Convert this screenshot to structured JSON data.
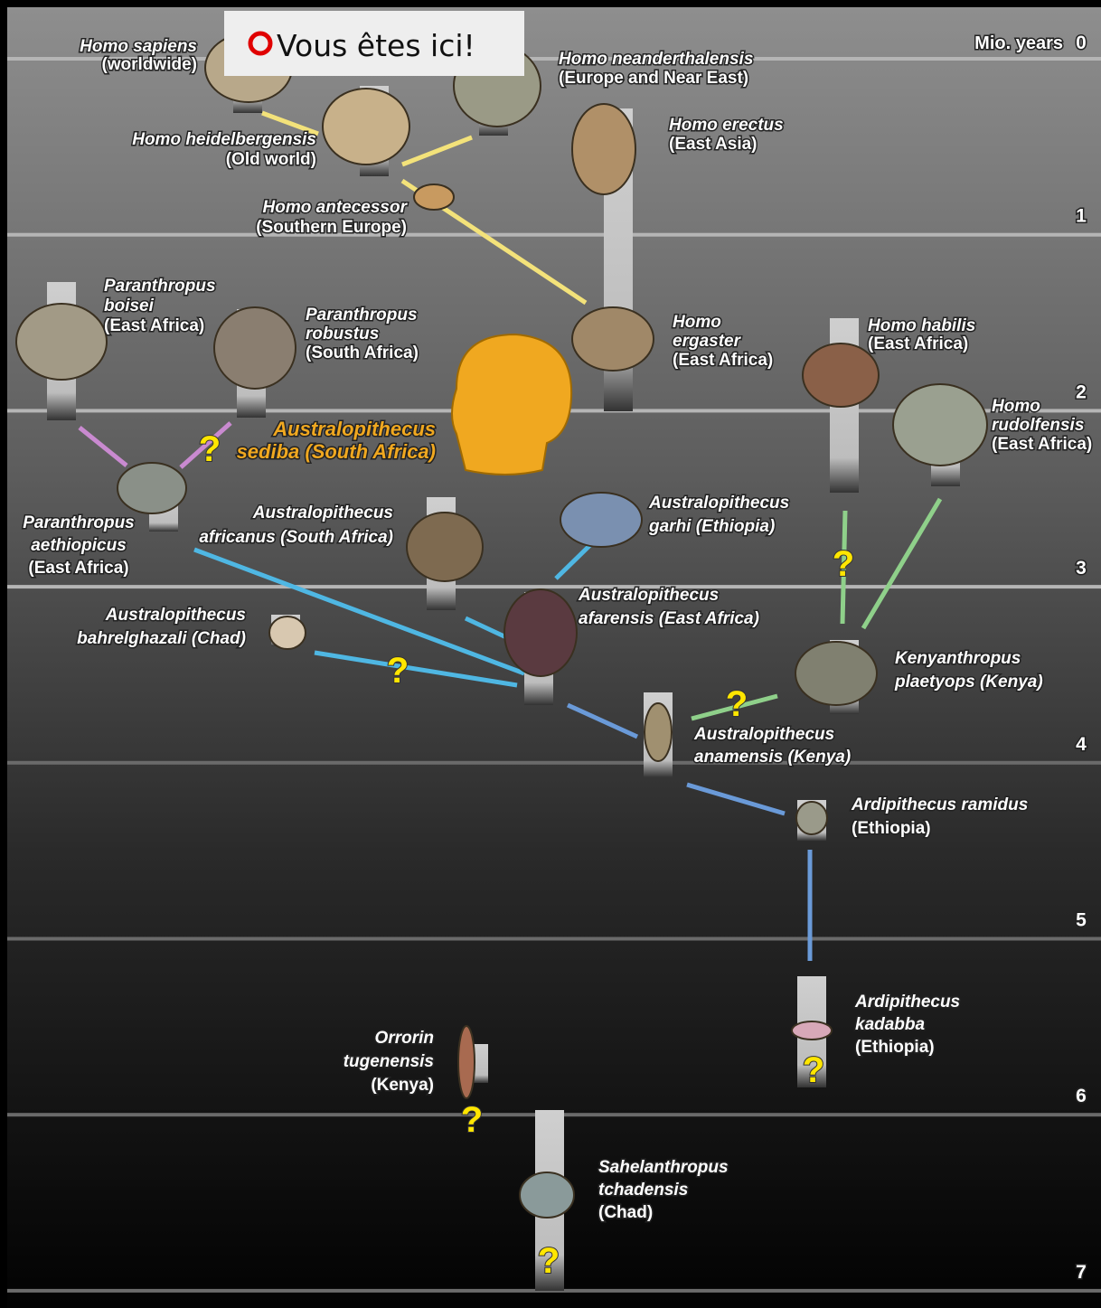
{
  "header": {
    "marker": "Vous êtes ici!",
    "axis_label": "Mio. years"
  },
  "axis": {
    "ticks": [
      0,
      1,
      2,
      3,
      4,
      5,
      6,
      7
    ]
  },
  "question_mark": "?",
  "species": [
    {
      "lines": [
        "Homo sapiens",
        "(worldwide)"
      ]
    },
    {
      "lines": [
        "Homo neanderthalensis",
        "(Europe and Near East)"
      ]
    },
    {
      "lines": [
        "Homo heidelbergensis",
        "(Old world)"
      ]
    },
    {
      "lines": [
        "Homo erectus",
        "(East Asia)"
      ]
    },
    {
      "lines": [
        "Homo antecessor",
        "(Southern Europe)"
      ]
    },
    {
      "lines": [
        "Paranthropus",
        "boisei",
        "(East Africa)"
      ]
    },
    {
      "lines": [
        "Paranthropus",
        "robustus",
        "(South Africa)"
      ]
    },
    {
      "lines": [
        "Homo",
        "ergaster",
        "(East Africa)"
      ]
    },
    {
      "lines": [
        "Homo habilis",
        "(East Africa)"
      ]
    },
    {
      "lines": [
        "Homo",
        "rudolfensis",
        "(East Africa)"
      ]
    },
    {
      "lines": [
        "Australopithecus",
        "sediba (South Africa)"
      ]
    },
    {
      "lines": [
        "Paranthropus",
        "aethiopicus",
        "(East Africa)"
      ]
    },
    {
      "lines": [
        "Australopithecus",
        "africanus (South Africa)"
      ]
    },
    {
      "lines": [
        "Australopithecus",
        "garhi (Ethiopia)"
      ]
    },
    {
      "lines": [
        "Australopithecus",
        "afarensis (East Africa)"
      ]
    },
    {
      "lines": [
        "Australopithecus",
        "bahrelghazali (Chad)"
      ]
    },
    {
      "lines": [
        "Kenyanthropus",
        "plaetyops (Kenya)"
      ]
    },
    {
      "lines": [
        "Australopithecus",
        "anamensis (Kenya)"
      ]
    },
    {
      "lines": [
        "Ardipithecus ramidus",
        "(Ethiopia)"
      ]
    },
    {
      "lines": [
        "Ardipithecus",
        "kadabba",
        "(Ethiopia)"
      ]
    },
    {
      "lines": [
        "Orrorin",
        "tugenensis",
        "(Kenya)"
      ]
    },
    {
      "lines": [
        "Sahelanthropus",
        "tchadensis",
        "(Chad)"
      ]
    }
  ]
}
